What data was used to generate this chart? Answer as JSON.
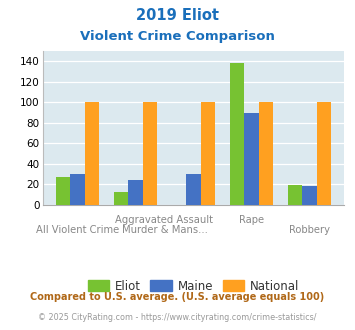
{
  "title_line1": "2019 Eliot",
  "title_line2": "Violent Crime Comparison",
  "categories": [
    "All Violent Crime",
    "Aggravated Assault",
    "Murder & Mans...",
    "Rape",
    "Robbery"
  ],
  "eliot": [
    27,
    12,
    0,
    138,
    19
  ],
  "maine": [
    30,
    24,
    30,
    90,
    18
  ],
  "national": [
    100,
    100,
    100,
    100,
    100
  ],
  "eliot_color": "#77c232",
  "maine_color": "#4472c4",
  "national_color": "#ffa020",
  "bg_color": "#dce9ef",
  "ylim": [
    0,
    150
  ],
  "yticks": [
    0,
    20,
    40,
    60,
    80,
    100,
    120,
    140
  ],
  "title1_color": "#1a6fbb",
  "title2_color": "#1a6fbb",
  "footnote1": "Compared to U.S. average. (U.S. average equals 100)",
  "footnote2": "© 2025 CityRating.com - https://www.cityrating.com/crime-statistics/",
  "footnote1_color": "#b06818",
  "footnote2_color": "#999999",
  "legend_labels": [
    "Eliot",
    "Maine",
    "National"
  ],
  "bar_width": 0.25
}
